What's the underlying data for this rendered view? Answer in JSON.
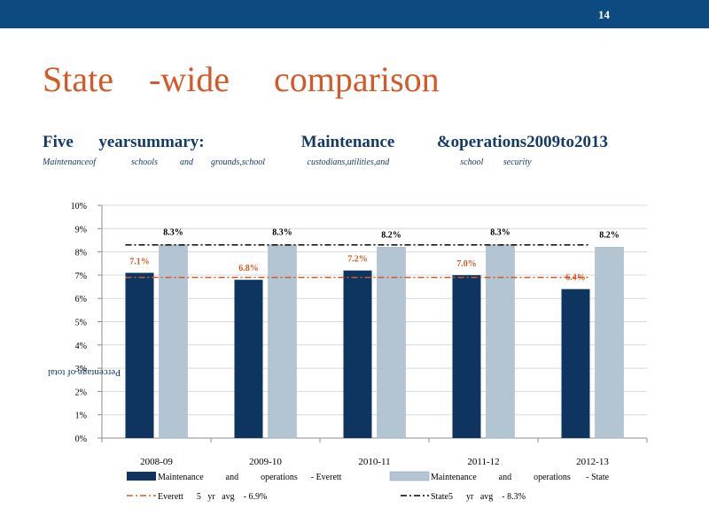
{
  "header": {
    "page_number": "14",
    "bar_color": "#0d4a80"
  },
  "slide": {
    "title": "State    -wide     comparison",
    "subtitle": "Five      yearsummary:                       Maintenance          &operations2009to2013",
    "subtitle_note": "Maintenanceof                schools          and        grounds,school                   custodians,utilities,and                                school         security"
  },
  "chart_data": {
    "type": "bar",
    "categories": [
      "2008-09",
      "2009-10",
      "2010-11",
      "2011-12",
      "2012-13"
    ],
    "series": [
      {
        "name": "Maintenance          and          operations      - Everett",
        "values": [
          7.1,
          6.8,
          7.2,
          7.0,
          6.4
        ],
        "labels": [
          "7.1%",
          "6.8%",
          "7.2%",
          "7.0%",
          "6.4%"
        ],
        "color": "#0d3560"
      },
      {
        "name": "Maintenance          and          operations       - State",
        "values": [
          8.3,
          8.3,
          8.2,
          8.3,
          8.2
        ],
        "labels": [
          "8.3%",
          "8.3%",
          "8.2%",
          "8.3%",
          "8.2%"
        ],
        "color": "#b3c4d2"
      }
    ],
    "reference_lines": [
      {
        "name": "Everett      5   yr   avg    - 6.9%",
        "value": 6.9,
        "color": "#d25a28",
        "style": "dash-dot"
      },
      {
        "name": "State5      yr   avg    - 8.3%",
        "value": 8.3,
        "color": "#000000",
        "style": "dash-dot"
      }
    ],
    "ylabel": "Percentage of total",
    "yticks": [
      "0%",
      "1%",
      "2%",
      "3%",
      "4%",
      "5%",
      "6%",
      "7%",
      "8%",
      "9%",
      "10%"
    ],
    "ylim": [
      0,
      10
    ],
    "grid": true,
    "legend_position": "bottom",
    "everett_label_color": "#d25a28",
    "state_label_color": "#000000"
  }
}
